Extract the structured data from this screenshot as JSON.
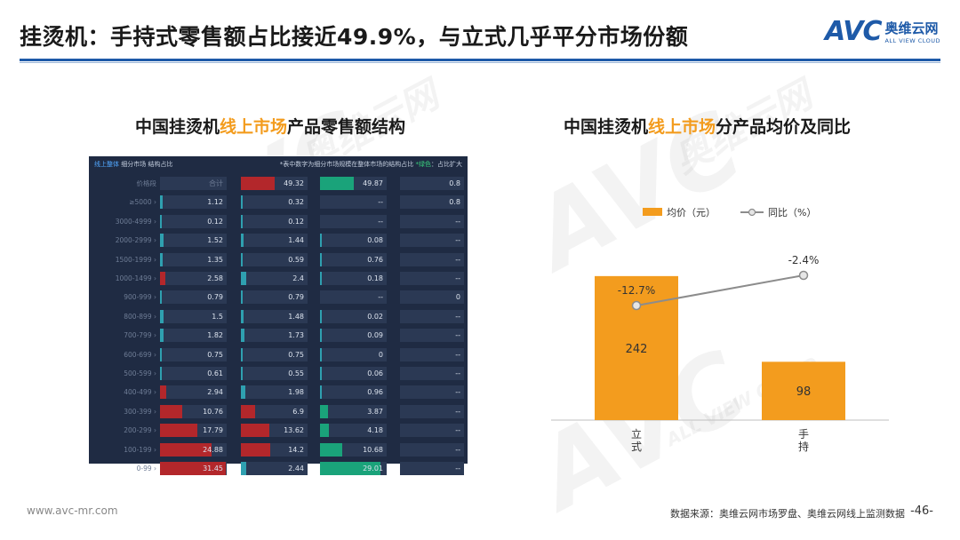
{
  "title": "挂烫机：手持式零售额占比接近49.9%，与立式几乎平分市场份额",
  "logo": {
    "avc": "AVC",
    "cn": "奥维云网",
    "en": "ALL VIEW CLOUD"
  },
  "left_subtitle": {
    "pre": "中国挂烫机",
    "hl": "线上市场",
    "post": "产品零售额结构"
  },
  "right_subtitle": {
    "pre": "中国挂烫机",
    "hl": "线上市场",
    "post": "分产品均价及同比"
  },
  "panel": {
    "head_blue": "线上整体",
    "head_rest": " 细分市场 结构占比",
    "head_note": "*表中数字为细分市场规模在整体市场的结构占比",
    "head_green": "*绿色",
    "head_tail": "：占比扩大",
    "header_row": {
      "label": "价格段",
      "c1": "合计",
      "c2": "49.32",
      "c3": "49.87",
      "c4": "0.8"
    },
    "rows": [
      {
        "label": "≥5000 ›",
        "c1": "1.12",
        "c2": "0.32",
        "c3": "--",
        "c4": "0.8"
      },
      {
        "label": "3000-4999 ›",
        "c1": "0.12",
        "c2": "0.12",
        "c3": "--",
        "c4": "--"
      },
      {
        "label": "2000-2999 ›",
        "c1": "1.52",
        "c2": "1.44",
        "c3": "0.08",
        "c4": "--"
      },
      {
        "label": "1500-1999 ›",
        "c1": "1.35",
        "c2": "0.59",
        "c3": "0.76",
        "c4": "--"
      },
      {
        "label": "1000-1499 ›",
        "c1": "2.58",
        "c2": "2.4",
        "c3": "0.18",
        "c4": "--"
      },
      {
        "label": "900-999 ›",
        "c1": "0.79",
        "c2": "0.79",
        "c3": "--",
        "c4": "0"
      },
      {
        "label": "800-899 ›",
        "c1": "1.5",
        "c2": "1.48",
        "c3": "0.02",
        "c4": "--"
      },
      {
        "label": "700-799 ›",
        "c1": "1.82",
        "c2": "1.73",
        "c3": "0.09",
        "c4": "--"
      },
      {
        "label": "600-699 ›",
        "c1": "0.75",
        "c2": "0.75",
        "c3": "0",
        "c4": "--"
      },
      {
        "label": "500-599 ›",
        "c1": "0.61",
        "c2": "0.55",
        "c3": "0.06",
        "c4": "--"
      },
      {
        "label": "400-499 ›",
        "c1": "2.94",
        "c2": "1.98",
        "c3": "0.96",
        "c4": "--"
      },
      {
        "label": "300-399 ›",
        "c1": "10.76",
        "c2": "6.9",
        "c3": "3.87",
        "c4": "--"
      },
      {
        "label": "200-299 ›",
        "c1": "17.79",
        "c2": "13.62",
        "c3": "4.18",
        "c4": "--"
      },
      {
        "label": "100-199 ›",
        "c1": "24.88",
        "c2": "14.2",
        "c3": "10.68",
        "c4": "--"
      },
      {
        "label": "0-99 ›",
        "c1": "31.45",
        "c2": "2.44",
        "c3": "29.01",
        "c4": "--"
      }
    ],
    "colors": {
      "red": "#b3272b",
      "green": "#1aa37a",
      "teal": "#2fa0b0"
    }
  },
  "chart_data": {
    "type": "bar",
    "categories": [
      "立式",
      "手持"
    ],
    "series": [
      {
        "name": "均价（元）",
        "type": "bar",
        "values": [
          242,
          98
        ],
        "color": "#f39c1e"
      },
      {
        "name": "同比（%）",
        "type": "line",
        "values": [
          -12.7,
          -2.4
        ],
        "labels": [
          "-12.7%",
          "-2.4%"
        ],
        "color": "#8c8c8c"
      }
    ],
    "legend": "top-center",
    "ylim": [
      0,
      300
    ]
  },
  "watermarks": [
    "AVC",
    "奥维云网",
    "ALL VIEW CLOUD"
  ],
  "footer": {
    "site": "www.avc-mr.com",
    "source": "数据来源：奥维云网市场罗盘、奥维云网线上监测数据",
    "page": "-46-"
  }
}
